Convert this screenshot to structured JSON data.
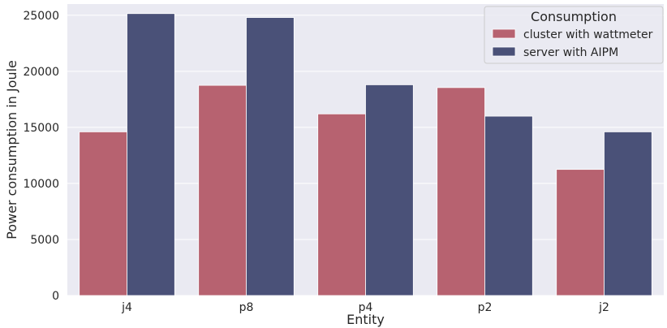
{
  "chart_data": {
    "type": "bar",
    "categories": [
      "j4",
      "p8",
      "p4",
      "p2",
      "j2"
    ],
    "series": [
      {
        "name": "cluster with wattmeter",
        "color": "#b76270",
        "values": [
          14600,
          18750,
          16200,
          18550,
          11250
        ]
      },
      {
        "name": "server with AIPM",
        "color": "#4a5178",
        "values": [
          25150,
          24800,
          18800,
          16000,
          14600
        ]
      }
    ],
    "xlabel": "Entity",
    "ylabel": "Power consumption in Joule",
    "ylim": [
      0,
      26000
    ],
    "yticks": [
      0,
      5000,
      10000,
      15000,
      20000,
      25000
    ],
    "grid": true,
    "legend": {
      "title": "Consumption",
      "position": "top-right"
    },
    "background_color": "#eaeaf2"
  }
}
